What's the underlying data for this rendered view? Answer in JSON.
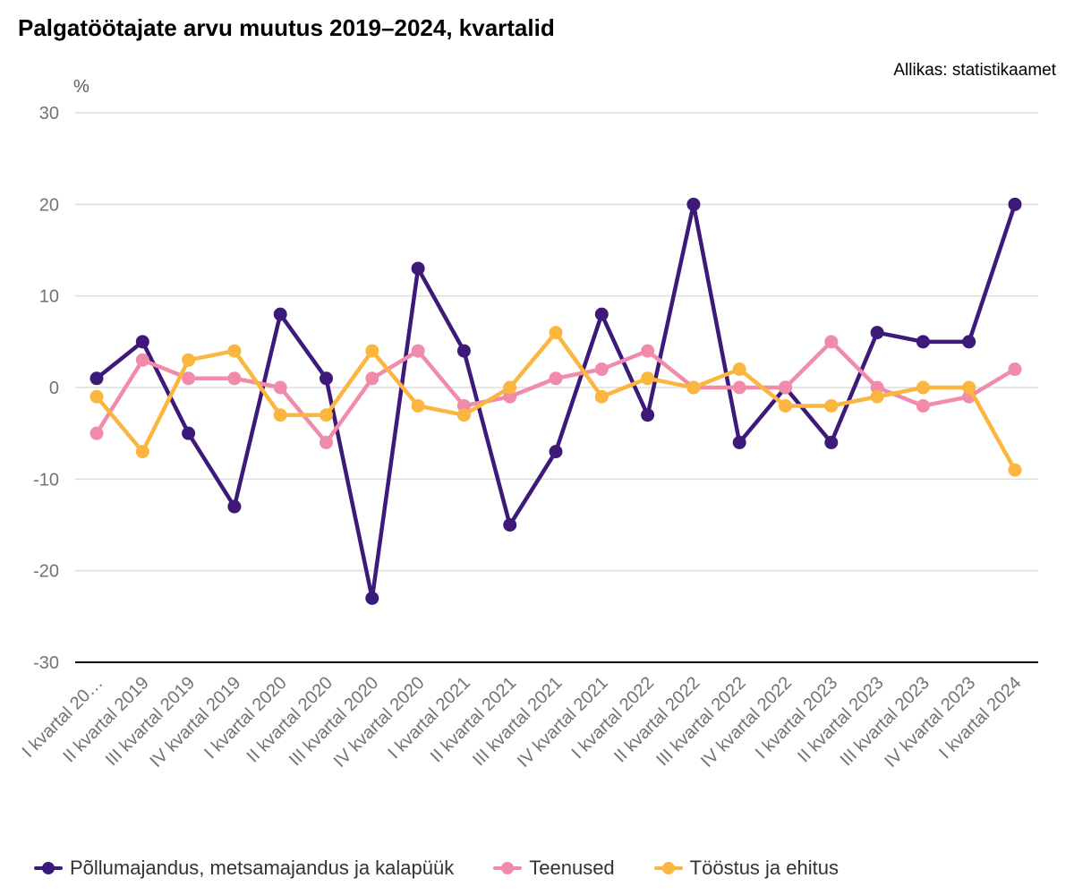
{
  "title": "Palgatöötajate arvu muutus 2019–2024, kvartalid",
  "source": "Allikas: statistikaamet",
  "unit": "%",
  "colors": {
    "grid": "#dddddd",
    "baseline": "#000000",
    "tick": "#737373"
  },
  "chart_data": {
    "type": "line",
    "title": "Palgatöötajate arvu muutus 2019–2024, kvartalid",
    "ylabel": "%",
    "ylim": [
      -30,
      30
    ],
    "yticks": [
      30,
      20,
      10,
      0,
      -10,
      -20,
      -30
    ],
    "grid": true,
    "legend_position": "bottom",
    "categories": [
      "I kvartal 20…",
      "II kvartal 2019",
      "III kvartal 2019",
      "IV kvartal 2019",
      "I kvartal 2020",
      "II kvartal 2020",
      "III kvartal 2020",
      "IV kvartal 2020",
      "I kvartal 2021",
      "II kvartal 2021",
      "III kvartal 2021",
      "IV kvartal 2021",
      "I kvartal 2022",
      "II kvartal 2022",
      "III kvartal 2022",
      "IV kvartal 2022",
      "I kvartal 2023",
      "II kvartal 2023",
      "III kvartal 2023",
      "IV kvartal 2023",
      "I kvartal 2024"
    ],
    "series": [
      {
        "name": "Põllumajandus, metsamajandus ja kalapüük",
        "color": "#3d1a7a",
        "values": [
          1,
          5,
          -5,
          -13,
          8,
          1,
          -23,
          13,
          4,
          -15,
          -7,
          8,
          -3,
          20,
          -6,
          0,
          -6,
          6,
          5,
          5,
          20
        ]
      },
      {
        "name": "Teenused",
        "color": "#f08caa",
        "values": [
          -5,
          3,
          1,
          1,
          0,
          -6,
          1,
          4,
          -2,
          -1,
          1,
          2,
          4,
          0,
          0,
          0,
          5,
          0,
          -2,
          -1,
          2
        ]
      },
      {
        "name": "Tööstus ja ehitus",
        "color": "#fbb63f",
        "values": [
          -1,
          -7,
          3,
          4,
          -3,
          -3,
          4,
          -2,
          -3,
          0,
          6,
          -1,
          1,
          0,
          2,
          -2,
          -2,
          -1,
          0,
          0,
          -9
        ]
      }
    ]
  }
}
